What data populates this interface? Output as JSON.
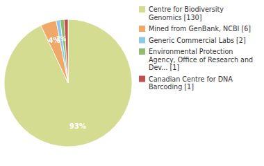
{
  "chart_data": {
    "type": "pie",
    "categories": [
      "Centre for Biodiversity\nGenomics [130]",
      "Mined from GenBank, NCBI [6]",
      "Generic Commercial Labs [2]",
      "Environmental Protection\nAgency, Office of Research and\nDev... [1]",
      "Canadian Centre for DNA\nBarcoding [1]"
    ],
    "values": [
      93,
      4,
      1,
      1,
      1
    ],
    "value_labels": [
      "93%",
      "4%",
      "1%",
      null,
      null
    ],
    "data_labels": true,
    "colors": [
      "#d4dc91",
      "#f0a868",
      "#8ec8e8",
      "#8fbc6f",
      "#c0504d"
    ],
    "legend": "right"
  }
}
